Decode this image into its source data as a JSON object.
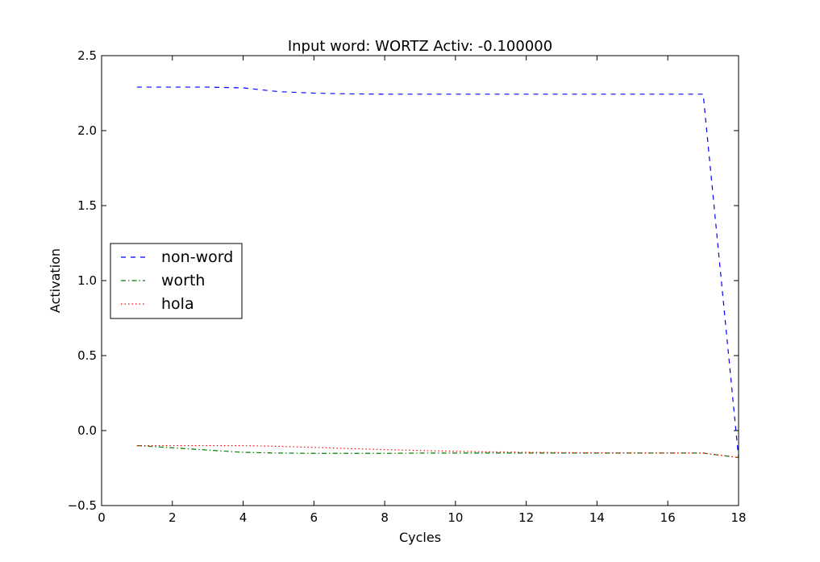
{
  "chart_data": {
    "type": "line",
    "title": "Input word: WORTZ Activ: -0.100000",
    "xlabel": "Cycles",
    "ylabel": "Activation",
    "xlim": [
      0,
      18
    ],
    "ylim": [
      -0.5,
      2.5
    ],
    "xticks": [
      0,
      2,
      4,
      6,
      8,
      10,
      12,
      14,
      16,
      18
    ],
    "yticks": [
      -0.5,
      0.0,
      0.5,
      1.0,
      1.5,
      2.0,
      2.5
    ],
    "xtick_labels": [
      "0",
      "2",
      "4",
      "6",
      "8",
      "10",
      "12",
      "14",
      "16",
      "18"
    ],
    "ytick_labels": [
      "−0.5",
      "0.0",
      "0.5",
      "1.0",
      "1.5",
      "2.0",
      "2.5"
    ],
    "grid": false,
    "legend_position": "center-left",
    "x": [
      1,
      2,
      3,
      4,
      5,
      6,
      7,
      8,
      9,
      10,
      11,
      12,
      13,
      14,
      15,
      16,
      17,
      18
    ],
    "series": [
      {
        "name": "non-word",
        "color": "#0000ff",
        "style": "dashed",
        "values": [
          2.29,
          2.29,
          2.29,
          2.285,
          2.26,
          2.25,
          2.245,
          2.243,
          2.243,
          2.243,
          2.243,
          2.243,
          2.243,
          2.243,
          2.243,
          2.243,
          2.243,
          -0.18
        ]
      },
      {
        "name": "worth",
        "color": "#008000",
        "style": "dashdot",
        "values": [
          -0.1,
          -0.115,
          -0.13,
          -0.145,
          -0.15,
          -0.152,
          -0.152,
          -0.152,
          -0.15,
          -0.15,
          -0.15,
          -0.15,
          -0.15,
          -0.15,
          -0.15,
          -0.15,
          -0.15,
          -0.18
        ]
      },
      {
        "name": "hola",
        "color": "#ff0000",
        "style": "dotted",
        "values": [
          -0.1,
          -0.1,
          -0.1,
          -0.1,
          -0.105,
          -0.112,
          -0.12,
          -0.127,
          -0.133,
          -0.138,
          -0.142,
          -0.145,
          -0.147,
          -0.148,
          -0.149,
          -0.15,
          -0.15,
          -0.18
        ]
      }
    ]
  }
}
